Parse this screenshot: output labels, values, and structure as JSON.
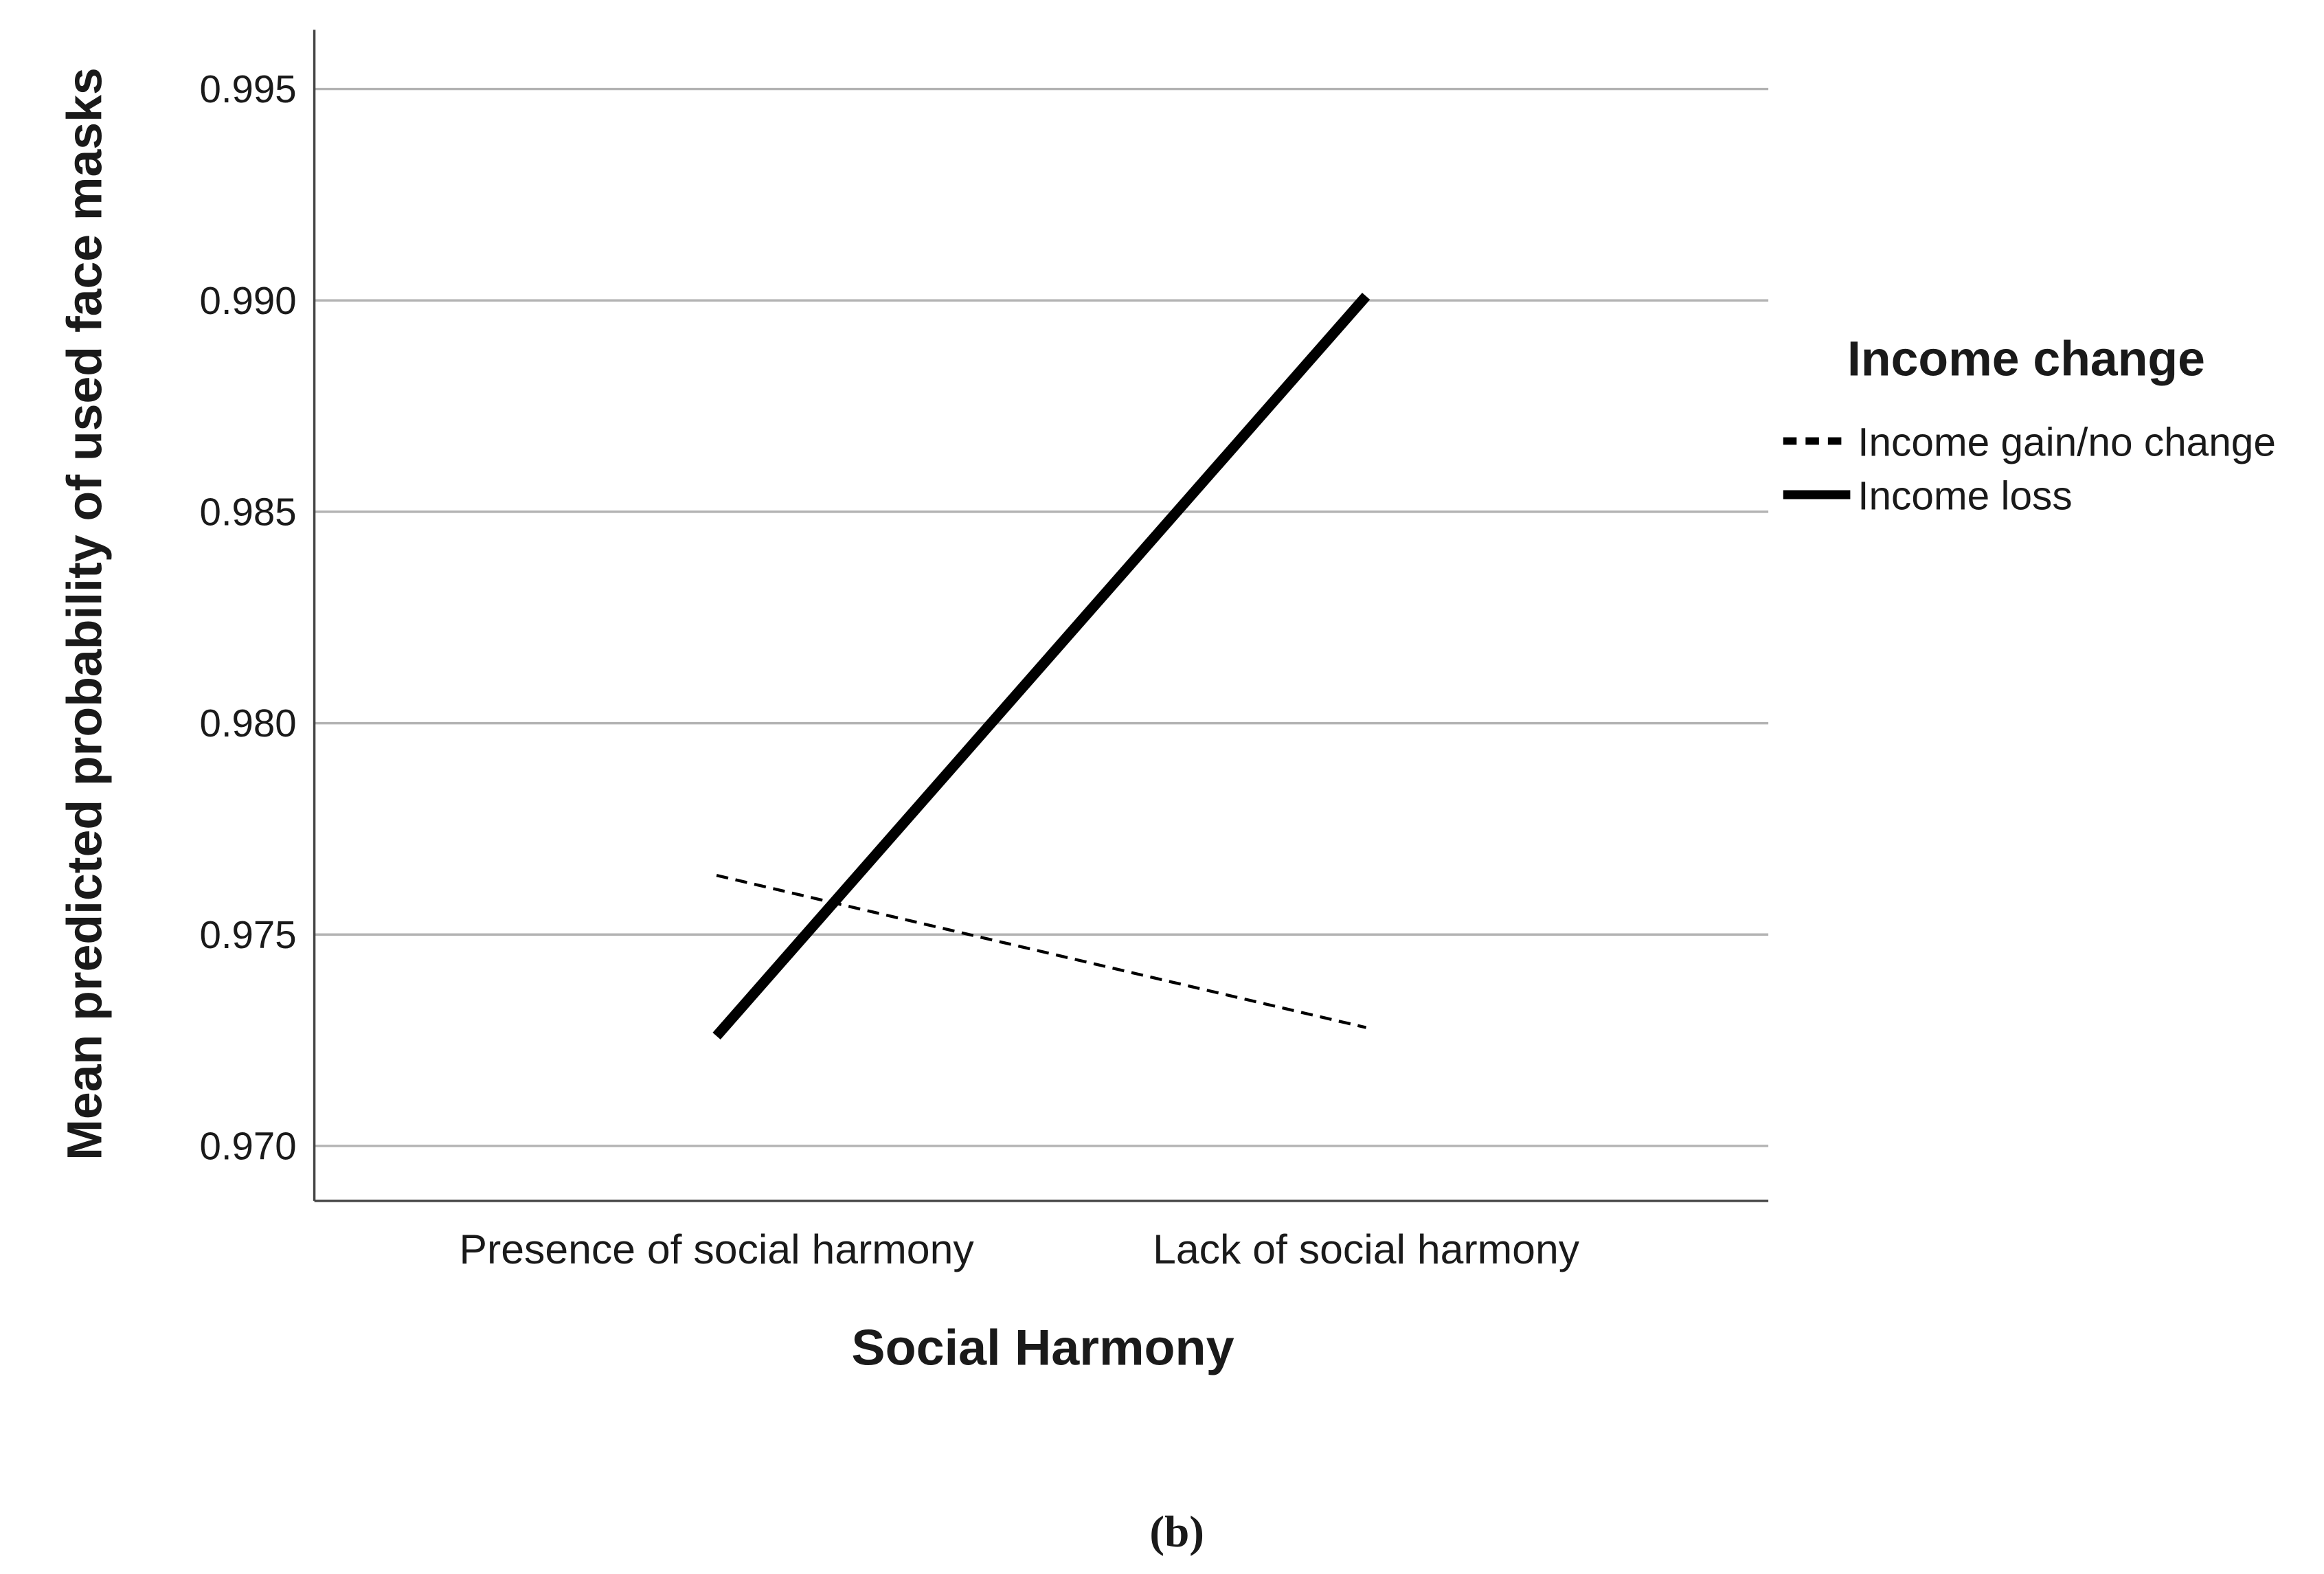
{
  "chart_data": {
    "type": "line",
    "x_label": "Social Harmony",
    "y_label": "Mean predicted probability of used face masks",
    "categories": [
      "Presence of social harmony",
      "Lack of social harmony"
    ],
    "series": [
      {
        "name": "Income gain/no change",
        "color": "#000000",
        "style": "dashed",
        "values": [
          0.9764,
          0.9728
        ]
      },
      {
        "name": "Income loss",
        "color": "#000000",
        "style": "solid",
        "values": [
          0.9726,
          0.9901
        ]
      }
    ],
    "ylim": [
      0.9687,
      0.9964
    ],
    "yticks": [
      {
        "value": 0.97,
        "label": "0.970"
      },
      {
        "value": 0.975,
        "label": "0.975"
      },
      {
        "value": 0.98,
        "label": "0.980"
      },
      {
        "value": 0.985,
        "label": "0.985"
      },
      {
        "value": 0.99,
        "label": "0.990"
      },
      {
        "value": 0.995,
        "label": "0.995"
      }
    ],
    "grid": true,
    "legend_title": "Income change",
    "legend_position": "right",
    "caption": "(b)"
  }
}
